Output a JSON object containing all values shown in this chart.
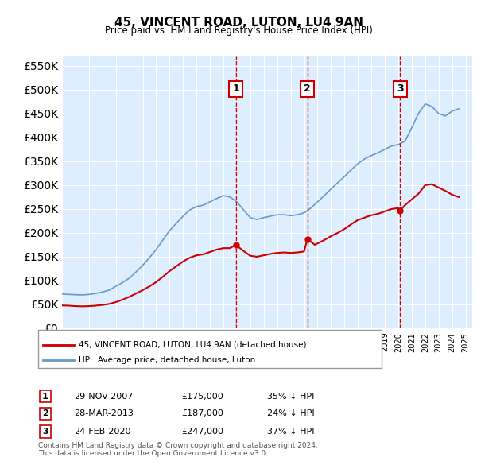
{
  "title": "45, VINCENT ROAD, LUTON, LU4 9AN",
  "subtitle": "Price paid vs. HM Land Registry's House Price Index (HPI)",
  "ylabel_ticks": [
    0,
    50000,
    100000,
    150000,
    200000,
    250000,
    300000,
    350000,
    400000,
    450000,
    500000,
    550000
  ],
  "ylim": [
    0,
    570000
  ],
  "xlim_start": 1995.0,
  "xlim_end": 2025.5,
  "background_color": "#ffffff",
  "chart_bg_color": "#ddeeff",
  "grid_color": "#ffffff",
  "sale_dates": [
    2007.917,
    2013.24,
    2020.15
  ],
  "sale_prices": [
    175000,
    187000,
    247000
  ],
  "sale_labels": [
    "1",
    "2",
    "3"
  ],
  "sale_date_strings": [
    "29-NOV-2007",
    "28-MAR-2013",
    "24-FEB-2020"
  ],
  "sale_price_strings": [
    "£175,000",
    "£187,000",
    "£247,000"
  ],
  "sale_hpi_strings": [
    "35% ↓ HPI",
    "24% ↓ HPI",
    "37% ↓ HPI"
  ],
  "hpi_years": [
    1995.0,
    1995.5,
    1996.0,
    1996.5,
    1997.0,
    1997.5,
    1998.0,
    1998.5,
    1999.0,
    1999.5,
    2000.0,
    2000.5,
    2001.0,
    2001.5,
    2002.0,
    2002.5,
    2003.0,
    2003.5,
    2004.0,
    2004.5,
    2005.0,
    2005.5,
    2006.0,
    2006.5,
    2007.0,
    2007.5,
    2008.0,
    2008.5,
    2009.0,
    2009.5,
    2010.0,
    2010.5,
    2011.0,
    2011.5,
    2012.0,
    2012.5,
    2013.0,
    2013.5,
    2014.0,
    2014.5,
    2015.0,
    2015.5,
    2016.0,
    2016.5,
    2017.0,
    2017.5,
    2018.0,
    2018.5,
    2019.0,
    2019.5,
    2020.0,
    2020.5,
    2021.0,
    2021.5,
    2022.0,
    2022.5,
    2023.0,
    2023.5,
    2024.0,
    2024.5
  ],
  "hpi_values": [
    72000,
    71000,
    70500,
    70000,
    71000,
    73000,
    76000,
    80000,
    88000,
    96000,
    105000,
    118000,
    132000,
    148000,
    165000,
    185000,
    205000,
    220000,
    235000,
    248000,
    255000,
    258000,
    265000,
    272000,
    278000,
    275000,
    265000,
    248000,
    232000,
    228000,
    232000,
    235000,
    238000,
    238000,
    236000,
    238000,
    242000,
    252000,
    265000,
    278000,
    292000,
    305000,
    318000,
    332000,
    345000,
    355000,
    362000,
    368000,
    375000,
    382000,
    385000,
    392000,
    420000,
    450000,
    470000,
    465000,
    450000,
    445000,
    455000,
    460000
  ],
  "house_years": [
    1995.0,
    1995.5,
    1996.0,
    1996.5,
    1997.0,
    1997.5,
    1998.0,
    1998.5,
    1999.0,
    1999.5,
    2000.0,
    2000.5,
    2001.0,
    2001.5,
    2002.0,
    2002.5,
    2003.0,
    2003.5,
    2004.0,
    2004.5,
    2005.0,
    2005.5,
    2006.0,
    2006.5,
    2007.0,
    2007.5,
    2007.917,
    2008.5,
    2009.0,
    2009.5,
    2010.0,
    2010.5,
    2011.0,
    2011.5,
    2012.0,
    2012.5,
    2013.0,
    2013.24,
    2013.8,
    2014.5,
    2015.0,
    2015.5,
    2016.0,
    2016.5,
    2017.0,
    2017.5,
    2018.0,
    2018.5,
    2019.0,
    2019.5,
    2020.0,
    2020.15,
    2020.5,
    2021.0,
    2021.5,
    2022.0,
    2022.5,
    2023.0,
    2023.5,
    2024.0,
    2024.5
  ],
  "house_values": [
    48000,
    47500,
    46500,
    46000,
    46500,
    47500,
    49000,
    51000,
    55000,
    60000,
    66000,
    73000,
    80000,
    88000,
    97000,
    108000,
    120000,
    130000,
    140000,
    148000,
    153000,
    155000,
    160000,
    165000,
    168000,
    168000,
    175000,
    162000,
    152000,
    150000,
    153000,
    156000,
    158000,
    159000,
    158000,
    159000,
    161000,
    187000,
    175000,
    185000,
    193000,
    200000,
    208000,
    218000,
    227000,
    232000,
    237000,
    240000,
    245000,
    250000,
    252000,
    247000,
    258000,
    270000,
    282000,
    300000,
    302000,
    295000,
    288000,
    280000,
    275000
  ],
  "legend_label_house": "45, VINCENT ROAD, LUTON, LU4 9AN (detached house)",
  "legend_label_hpi": "HPI: Average price, detached house, Luton",
  "footnote": "Contains HM Land Registry data © Crown copyright and database right 2024.\nThis data is licensed under the Open Government Licence v3.0.",
  "house_color": "#cc0000",
  "hpi_color": "#6699cc",
  "vline_color": "#cc0000",
  "box_color": "#cc0000"
}
